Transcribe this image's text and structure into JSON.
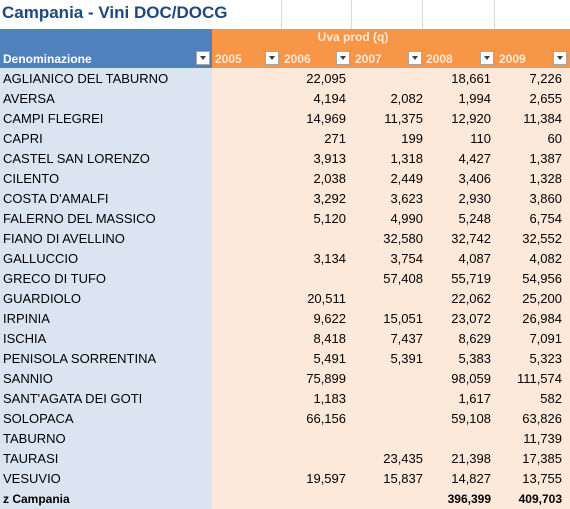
{
  "title": "Campania - Vini DOC/DOCG",
  "header": {
    "measure_label": "Uva prod (q)",
    "row_label": "Denominazione",
    "years": [
      "2005",
      "2006",
      "2007",
      "2008",
      "2009"
    ]
  },
  "colors": {
    "title": "#1f497d",
    "row_header_bg": "#4f81bd",
    "column_header_bg": "#f79646",
    "row_label_bg": "#dbe5f1",
    "values_bg": "#fde9d9"
  },
  "icons": [
    "filter-dropdown-icon"
  ],
  "rows": [
    {
      "name": "AGLIANICO DEL TABURNO",
      "v2005": "",
      "v2006": "22,095",
      "v2007": "",
      "v2008": "18,661",
      "v2009": "7,226"
    },
    {
      "name": "AVERSA",
      "v2005": "",
      "v2006": "4,194",
      "v2007": "2,082",
      "v2008": "1,994",
      "v2009": "2,655"
    },
    {
      "name": "CAMPI FLEGREI",
      "v2005": "",
      "v2006": "14,969",
      "v2007": "11,375",
      "v2008": "12,920",
      "v2009": "11,384"
    },
    {
      "name": "CAPRI",
      "v2005": "",
      "v2006": "271",
      "v2007": "199",
      "v2008": "110",
      "v2009": "60"
    },
    {
      "name": "CASTEL SAN LORENZO",
      "v2005": "",
      "v2006": "3,913",
      "v2007": "1,318",
      "v2008": "4,427",
      "v2009": "1,387"
    },
    {
      "name": "CILENTO",
      "v2005": "",
      "v2006": "2,038",
      "v2007": "2,449",
      "v2008": "3,406",
      "v2009": "1,328"
    },
    {
      "name": "COSTA D'AMALFI",
      "v2005": "",
      "v2006": "3,292",
      "v2007": "3,623",
      "v2008": "2,930",
      "v2009": "3,860"
    },
    {
      "name": "FALERNO  DEL  MASSICO",
      "v2005": "",
      "v2006": "5,120",
      "v2007": "4,990",
      "v2008": "5,248",
      "v2009": "6,754"
    },
    {
      "name": "FIANO DI AVELLINO",
      "v2005": "",
      "v2006": "",
      "v2007": "32,580",
      "v2008": "32,742",
      "v2009": "32,552"
    },
    {
      "name": "GALLUCCIO",
      "v2005": "",
      "v2006": "3,134",
      "v2007": "3,754",
      "v2008": "4,087",
      "v2009": "4,082"
    },
    {
      "name": "GRECO DI TUFO",
      "v2005": "",
      "v2006": "",
      "v2007": "57,408",
      "v2008": "55,719",
      "v2009": "54,956"
    },
    {
      "name": "GUARDIOLO",
      "v2005": "",
      "v2006": "20,511",
      "v2007": "",
      "v2008": "22,062",
      "v2009": "25,200"
    },
    {
      "name": "IRPINIA",
      "v2005": "",
      "v2006": "9,622",
      "v2007": "15,051",
      "v2008": "23,072",
      "v2009": "26,984"
    },
    {
      "name": "ISCHIA",
      "v2005": "",
      "v2006": "8,418",
      "v2007": "7,437",
      "v2008": "8,629",
      "v2009": "7,091"
    },
    {
      "name": "PENISOLA SORRENTINA",
      "v2005": "",
      "v2006": "5,491",
      "v2007": "5,391",
      "v2008": "5,383",
      "v2009": "5,323"
    },
    {
      "name": "SANNIO",
      "v2005": "",
      "v2006": "75,899",
      "v2007": "",
      "v2008": "98,059",
      "v2009": "111,574"
    },
    {
      "name": "SANT'AGATA  DEI  GOTI",
      "v2005": "",
      "v2006": "1,183",
      "v2007": "",
      "v2008": "1,617",
      "v2009": "582"
    },
    {
      "name": "SOLOPACA",
      "v2005": "",
      "v2006": "66,156",
      "v2007": "",
      "v2008": "59,108",
      "v2009": "63,826"
    },
    {
      "name": "TABURNO",
      "v2005": "",
      "v2006": "",
      "v2007": "",
      "v2008": "",
      "v2009": "11,739"
    },
    {
      "name": "TAURASI",
      "v2005": "",
      "v2006": "",
      "v2007": "23,435",
      "v2008": "21,398",
      "v2009": "17,385"
    },
    {
      "name": "VESUVIO",
      "v2005": "",
      "v2006": "19,597",
      "v2007": "15,837",
      "v2008": "14,827",
      "v2009": "13,755"
    }
  ],
  "total": {
    "name": "z Campania",
    "v2005": "",
    "v2006": "",
    "v2007": "",
    "v2008": "396,399",
    "v2009": "409,703"
  }
}
